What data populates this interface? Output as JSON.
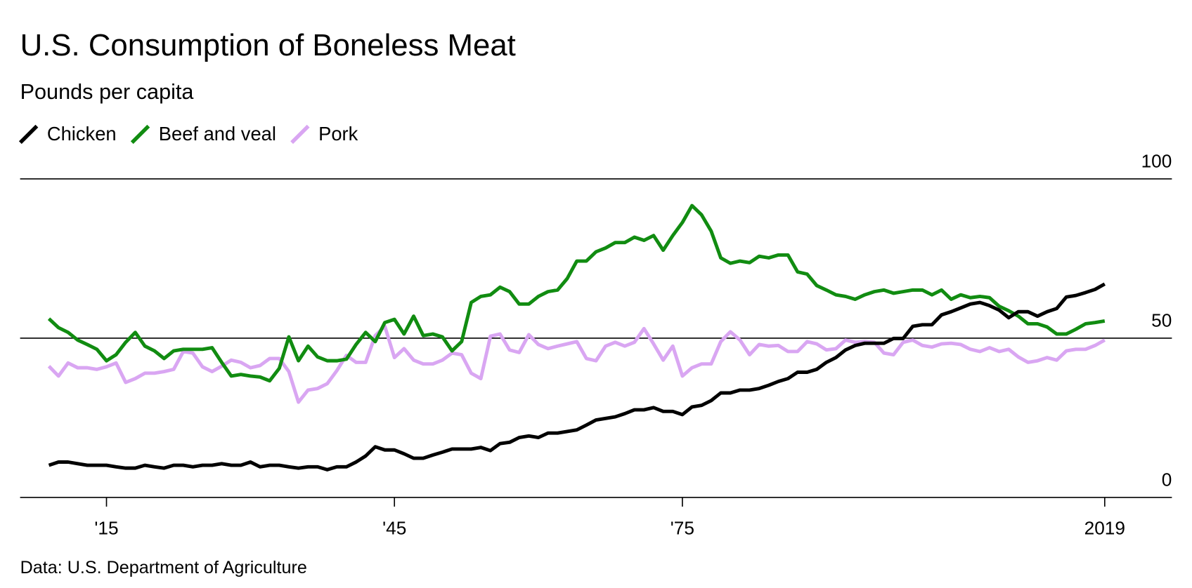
{
  "chart_data": {
    "type": "line",
    "title": "U.S. Consumption of Boneless Meat",
    "subtitle": "Pounds per capita",
    "source": "Data: U.S. Department of Agriculture",
    "x": [
      1909,
      1910,
      1911,
      1912,
      1913,
      1914,
      1915,
      1916,
      1917,
      1918,
      1919,
      1920,
      1921,
      1922,
      1923,
      1924,
      1925,
      1926,
      1927,
      1928,
      1929,
      1930,
      1931,
      1932,
      1933,
      1934,
      1935,
      1936,
      1937,
      1938,
      1939,
      1940,
      1941,
      1942,
      1943,
      1944,
      1945,
      1946,
      1947,
      1948,
      1949,
      1950,
      1951,
      1952,
      1953,
      1954,
      1955,
      1956,
      1957,
      1958,
      1959,
      1960,
      1961,
      1962,
      1963,
      1964,
      1965,
      1966,
      1967,
      1968,
      1969,
      1970,
      1971,
      1972,
      1973,
      1974,
      1975,
      1976,
      1977,
      1978,
      1979,
      1980,
      1981,
      1982,
      1983,
      1984,
      1985,
      1986,
      1987,
      1988,
      1989,
      1990,
      1991,
      1992,
      1993,
      1994,
      1995,
      1996,
      1997,
      1998,
      1999,
      2000,
      2001,
      2002,
      2003,
      2004,
      2005,
      2006,
      2007,
      2008,
      2009,
      2010,
      2011,
      2012,
      2013,
      2014,
      2015,
      2016,
      2017,
      2018,
      2019
    ],
    "series": [
      {
        "name": "Chicken",
        "color": "#000000",
        "values": [
          10.1,
          11.1,
          11.1,
          10.6,
          10.1,
          10.1,
          10.1,
          9.6,
          9.2,
          9.2,
          10.1,
          9.6,
          9.2,
          10.1,
          10.1,
          9.6,
          10.1,
          10.1,
          10.6,
          10.1,
          10.1,
          11.1,
          9.6,
          10.1,
          10.1,
          9.6,
          9.2,
          9.6,
          9.6,
          8.7,
          9.6,
          9.6,
          11.1,
          13.0,
          15.9,
          14.9,
          14.9,
          13.7,
          12.3,
          12.3,
          13.3,
          14.2,
          15.2,
          15.2,
          15.2,
          15.7,
          14.7,
          16.9,
          17.3,
          18.8,
          19.3,
          18.8,
          20.2,
          20.2,
          20.7,
          21.2,
          22.7,
          24.3,
          24.8,
          25.3,
          26.3,
          27.5,
          27.5,
          28.2,
          27.0,
          27.0,
          26.0,
          28.4,
          28.9,
          30.4,
          32.8,
          32.8,
          33.7,
          33.7,
          34.2,
          35.2,
          36.4,
          37.3,
          39.3,
          39.3,
          40.2,
          42.4,
          43.9,
          46.3,
          47.7,
          48.4,
          48.4,
          48.4,
          49.9,
          49.9,
          53.7,
          54.2,
          54.2,
          57.3,
          58.3,
          59.5,
          60.7,
          61.2,
          60.2,
          58.8,
          56.4,
          58.3,
          58.3,
          56.9,
          58.3,
          59.3,
          62.9,
          63.4,
          64.3,
          65.3,
          67.0
        ]
      },
      {
        "name": "Beef and veal",
        "color": "#118c11",
        "values": [
          56.1,
          53.3,
          51.8,
          49.4,
          48.0,
          46.5,
          42.9,
          44.8,
          48.7,
          51.8,
          47.5,
          46.0,
          43.6,
          46.0,
          46.5,
          46.5,
          46.5,
          47.0,
          42.4,
          38.1,
          38.6,
          38.1,
          37.8,
          36.6,
          40.5,
          50.4,
          42.9,
          47.5,
          44.1,
          42.9,
          42.9,
          43.4,
          48.0,
          51.8,
          48.9,
          54.9,
          55.9,
          51.3,
          56.9,
          50.8,
          51.3,
          50.4,
          46.0,
          48.9,
          61.2,
          63.1,
          63.6,
          66.0,
          64.6,
          60.7,
          60.7,
          63.1,
          64.6,
          65.1,
          68.7,
          74.2,
          74.2,
          77.1,
          78.3,
          80.0,
          80.0,
          81.7,
          80.7,
          82.2,
          77.6,
          82.2,
          86.3,
          91.6,
          88.7,
          83.6,
          75.2,
          73.5,
          74.2,
          73.7,
          75.7,
          75.2,
          76.1,
          76.1,
          70.8,
          70.1,
          66.5,
          65.1,
          63.6,
          63.1,
          62.2,
          63.6,
          64.6,
          65.1,
          64.1,
          64.6,
          65.1,
          65.1,
          63.6,
          65.1,
          62.2,
          63.6,
          62.7,
          63.1,
          62.7,
          60.0,
          58.6,
          56.9,
          54.5,
          54.5,
          53.5,
          51.3,
          51.3,
          52.8,
          54.5,
          54.9,
          55.4
        ]
      },
      {
        "name": "Pork",
        "color": "#d9a6f2",
        "values": [
          41.2,
          38.1,
          42.2,
          40.7,
          40.7,
          40.2,
          41.0,
          42.2,
          36.1,
          37.3,
          39.0,
          39.0,
          39.5,
          40.2,
          45.8,
          45.3,
          41.0,
          39.5,
          41.2,
          43.1,
          42.4,
          40.7,
          41.4,
          43.6,
          43.6,
          39.5,
          29.9,
          33.7,
          34.2,
          35.7,
          39.8,
          44.6,
          42.4,
          42.4,
          50.8,
          53.7,
          43.9,
          46.7,
          43.1,
          41.9,
          41.9,
          43.1,
          45.3,
          44.8,
          39.0,
          37.3,
          50.6,
          51.3,
          46.3,
          45.5,
          51.1,
          48.0,
          46.7,
          47.5,
          48.2,
          48.9,
          43.6,
          42.9,
          47.5,
          48.7,
          47.5,
          48.7,
          53.0,
          48.2,
          43.1,
          47.5,
          38.1,
          40.7,
          41.9,
          41.9,
          48.9,
          52.0,
          49.4,
          44.8,
          48.0,
          47.5,
          47.7,
          45.8,
          45.8,
          48.9,
          48.2,
          46.3,
          46.7,
          49.4,
          48.7,
          48.9,
          48.7,
          45.3,
          44.8,
          48.7,
          49.4,
          47.7,
          47.2,
          48.2,
          48.4,
          48.0,
          46.5,
          45.8,
          47.0,
          45.8,
          46.5,
          44.1,
          42.4,
          42.9,
          43.9,
          43.1,
          46.0,
          46.5,
          46.5,
          47.7,
          49.4
        ]
      }
    ],
    "xlim": [
      1906,
      2026
    ],
    "xticks": [
      {
        "value": 1915,
        "label": "'15"
      },
      {
        "value": 1945,
        "label": "'45"
      },
      {
        "value": 1975,
        "label": "'75"
      },
      2019
    ],
    "ylim": [
      0,
      100
    ],
    "yticks": [
      0,
      50,
      100
    ],
    "grid": true
  }
}
